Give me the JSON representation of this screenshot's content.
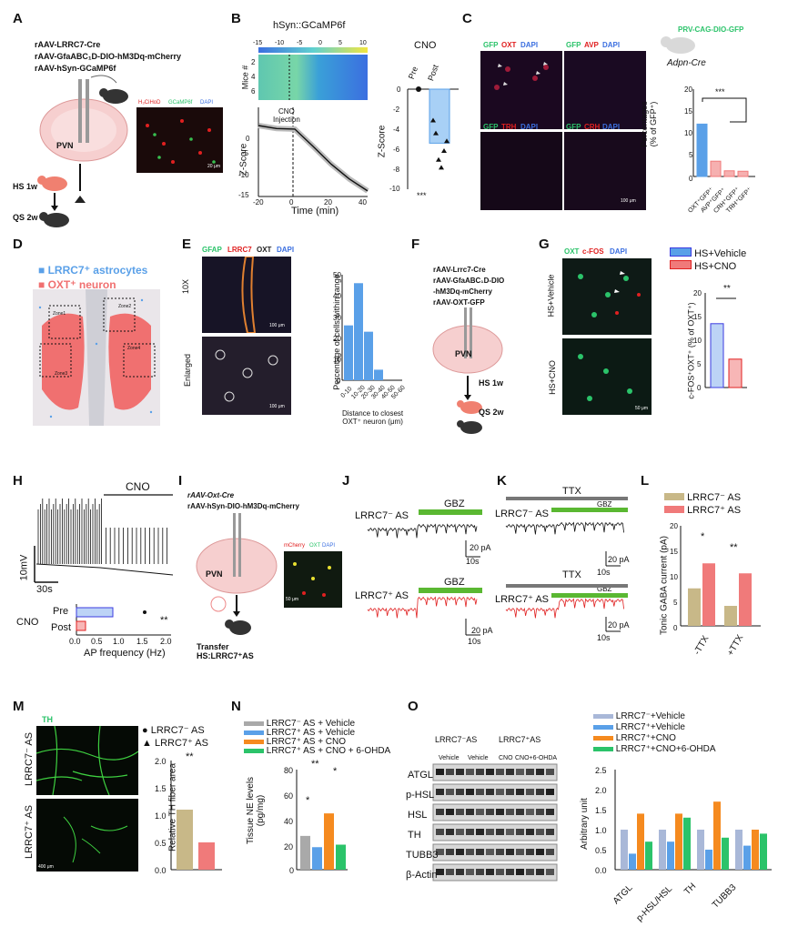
{
  "panels": {
    "A": {
      "letter": "A",
      "viruses": [
        "rAAV-LRRC7-Cre",
        "rAAV-GfaABC₁D-DIO-hM3Dq-mCherry",
        "rAAV-hSyn-GCaMP6f"
      ],
      "region": "PVN",
      "steps": [
        "HS 1w",
        "QS 2w"
      ],
      "micro_legend": {
        "c1": "H₃CiHoD",
        "c2": "GCaMP6f",
        "c3": "DAPI"
      },
      "scale": "20 μm"
    },
    "B": {
      "letter": "B",
      "title": "hSyn::GCaMP6f",
      "heat_ticks": [
        "-15",
        "-10",
        "-5",
        "0",
        "5",
        "10"
      ],
      "mice_label": "Mice #",
      "mice_ticks": [
        "2",
        "4",
        "6"
      ],
      "zscore_label": "Z-Score",
      "zscore_ticks": [
        "0",
        "-5",
        "-10",
        "-15"
      ],
      "time_label": "Time (min)",
      "time_ticks": [
        "-20",
        "0",
        "20",
        "40"
      ],
      "injection": "CNO\nInjection",
      "cno_title": "CNO",
      "pre": "Pre",
      "post": "Post",
      "bar_ylabel": "Z-Score",
      "bar_ticks": [
        "0",
        "-2",
        "-4",
        "-6",
        "-8",
        "-10"
      ],
      "sig": "***"
    },
    "C": {
      "letter": "C",
      "virus": "PRV-CAG-DIO-GFP",
      "mouse_line": "Adpn-Cre",
      "tiles": [
        {
          "a": "GFP",
          "b": "OXT",
          "c": "DAPI"
        },
        {
          "a": "GFP",
          "b": "AVP",
          "c": "DAPI"
        },
        {
          "a": "GFP",
          "b": "TRH",
          "c": "DAPI"
        },
        {
          "a": "GFP",
          "b": "CRH",
          "c": "DAPI"
        }
      ],
      "scale": "100 μm",
      "ylabel": "Percentages\n(% of GFP⁺)",
      "yticks": [
        "0",
        "5",
        "10",
        "15",
        "20"
      ],
      "categories": [
        "OXT⁺GFP⁺",
        "AVP⁺GFP⁺",
        "CRH⁺GFP⁺",
        "TRH⁺GFP⁺"
      ],
      "sig": "***"
    },
    "D": {
      "letter": "D",
      "legend1": "LRRC7⁺ astrocytes",
      "legend2": "OXT⁺ neuron",
      "zones": [
        "Zone1",
        "Zone2",
        "Zone3",
        "Zone4"
      ]
    },
    "E": {
      "letter": "E",
      "stain": {
        "a": "GFAP",
        "b": "LRRC7",
        "c": "OXT",
        "d": "DAPI"
      },
      "row1": "10X",
      "row2": "Enlarged",
      "scale": "100 μm",
      "ylabel": "Percentage of cells within range",
      "xlabel": "Distance to closest\nOXT⁺ neuron (μm)",
      "yticks": [
        "0",
        "10",
        "20",
        "30",
        "40",
        "50"
      ],
      "categories": [
        "0-10",
        "10-20",
        "20-30",
        "30-40",
        "40-50",
        "50-60"
      ]
    },
    "F": {
      "letter": "F",
      "viruses": [
        "rAAV-Lrrc7-Cre",
        "rAAV-GfaABC₁D-DIO",
        "-hM3Dq-mCherry",
        "rAAV-OXT-GFP"
      ],
      "region": "PVN",
      "steps": [
        "HS 1w",
        "QS 2w"
      ]
    },
    "G": {
      "letter": "G",
      "stain": {
        "a": "OXT",
        "b": "c-FOS",
        "c": "DAPI"
      },
      "row1": "HS+Vehicle",
      "row2": "HS+CNO",
      "legend": [
        "HS+Vehicle",
        "HS+CNO"
      ],
      "ylabel": "c-FOS⁺OXT⁺ (% of OXT⁺)",
      "yticks": [
        "0",
        "5",
        "10",
        "15",
        "20"
      ],
      "sig": "**",
      "scale": "50 μm"
    },
    "H": {
      "letter": "H",
      "cno": "CNO",
      "scale_v": "10mV",
      "scale_t": "30s",
      "group": "CNO",
      "pre": "Pre",
      "post": "Post",
      "xlabel": "AP frequency (Hz)",
      "xticks": [
        "0.0",
        "0.5",
        "1.0",
        "1.5",
        "2.0"
      ],
      "sig": "**"
    },
    "I": {
      "letter": "I",
      "viruses": [
        "rAAV-Oxt-Cre",
        "rAAV-hSyn-DIO-hM3Dq-mCherry"
      ],
      "region": "PVN",
      "transfer": "Transfer\nHS:LRRC7⁺AS",
      "micro": {
        "a": "mCherry",
        "b": "OXT",
        "c": "DAPI"
      },
      "scale": "50 μm"
    },
    "J": {
      "letter": "J",
      "row1": "LRRC7⁻ AS",
      "row2": "LRRC7⁺ AS",
      "drug": "GBZ",
      "scale_i": "20 pA",
      "scale_t": "10s"
    },
    "K": {
      "letter": "K",
      "row1": "LRRC7⁻ AS",
      "row2": "LRRC7⁺ AS",
      "drug": "GBZ",
      "ttx": "TTX",
      "scale_i": "20 pA",
      "scale_t": "10s"
    },
    "L": {
      "letter": "L",
      "legend": [
        "LRRC7⁻ AS",
        "LRRC7⁺ AS"
      ],
      "ylabel": "Tonic GABA current (pA)",
      "yticks": [
        "0",
        "5",
        "10",
        "15",
        "20"
      ],
      "categories": [
        "-TTX",
        "+TTX"
      ],
      "sig": [
        "*",
        "**"
      ]
    },
    "M": {
      "letter": "M",
      "stain": "TH",
      "row1": "LRRC7⁻ AS",
      "row2": "LRRC7⁺ AS",
      "legend": [
        "LRRC7⁻ AS",
        "LRRC7⁺ AS"
      ],
      "ylabel": "Relative TH fiber area",
      "yticks": [
        "0.0",
        "0.5",
        "1.0",
        "1.5",
        "2.0"
      ],
      "sig": "**",
      "scale": "400 μm"
    },
    "N": {
      "letter": "N",
      "legend": [
        "LRRC7⁻ AS + Vehicle",
        "LRRC7⁺ AS + Vehicle",
        "LRRC7⁺ AS + CNO",
        "LRRC7⁺ AS + CNO + 6-OHDA"
      ],
      "ylabel": "Tissue NE levels\n(pg/mg)",
      "yticks": [
        "0",
        "20",
        "40",
        "60",
        "80"
      ],
      "sig": [
        "*",
        "**",
        "*"
      ]
    },
    "O": {
      "letter": "O",
      "blot_header1": "LRRC7⁻AS",
      "blot_header2": "LRRC7⁺AS",
      "lanes": [
        "Vehicle",
        "Vehicle",
        "CNO",
        "CNO+6-OHDA"
      ],
      "bands": [
        "ATGL",
        "p-HSL",
        "HSL",
        "TH",
        "TUBB3",
        "β-Actin"
      ],
      "legend": [
        "LRRC7⁻+Vehicle",
        "LRRC7⁺+Vehicle",
        "LRRC7⁺+CNO",
        "LRRC7⁺+CNO+6-OHDA"
      ],
      "ylabel": "Arbitrary unit",
      "yticks": [
        "0.0",
        "0.5",
        "1.0",
        "1.5",
        "2.0",
        "2.5"
      ],
      "categories": [
        "ATGL",
        "p-HSL/HSL",
        "TH",
        "TUBB3"
      ]
    }
  },
  "colors": {
    "grey": "#a9a9a9",
    "blue": "#5aa0e8",
    "orange": "#f58a1f",
    "green": "#2bc36a",
    "tan": "#c8b888",
    "pink": "#f07a7a",
    "red": "#e02020",
    "heat_blue": "#3b6fe0",
    "heat_yellow": "#f2e640"
  },
  "chart_data": [
    {
      "type": "bar",
      "panel": "B",
      "categories": [
        "Pre",
        "Post"
      ],
      "values": [
        0,
        -5.5
      ],
      "ylim": [
        -10,
        0
      ],
      "points": {
        "Post": [
          -3.2,
          -4.5,
          -7.2,
          -8.0,
          -6.3,
          -5.3
        ]
      }
    },
    {
      "type": "line",
      "panel": "B",
      "x": [
        -20,
        -10,
        0,
        10,
        20,
        30,
        40
      ],
      "y": [
        0,
        -0.5,
        -0.6,
        -3.5,
        -6.5,
        -9,
        -11
      ],
      "ylim": [
        -15,
        0
      ],
      "xlim": [
        -20,
        40
      ]
    },
    {
      "type": "bar",
      "panel": "C",
      "categories": [
        "OXT⁺GFP⁺",
        "AVP⁺GFP⁺",
        "CRH⁺GFP⁺",
        "TRH⁺GFP⁺"
      ],
      "values": [
        12.0,
        3.5,
        1.3,
        1.2
      ],
      "ylim": [
        0,
        20
      ]
    },
    {
      "type": "bar",
      "panel": "E",
      "categories": [
        "0-10",
        "10-20",
        "20-30",
        "30-40",
        "40-50",
        "50-60"
      ],
      "values": [
        26,
        46,
        23,
        5,
        0,
        0
      ],
      "ylim": [
        0,
        50
      ]
    },
    {
      "type": "bar",
      "panel": "G",
      "categories": [
        "HS+Vehicle",
        "HS+CNO"
      ],
      "values": [
        13.5,
        6.0
      ],
      "ylim": [
        0,
        20
      ]
    },
    {
      "type": "bar",
      "panel": "H",
      "categories": [
        "Pre",
        "Post"
      ],
      "values": [
        0.8,
        0.2
      ],
      "xlim": [
        0,
        2.0
      ]
    },
    {
      "type": "bar",
      "panel": "L",
      "categories": [
        "-TTX",
        "+TTX"
      ],
      "series": [
        {
          "name": "LRRC7⁻ AS",
          "values": [
            7.5,
            4.0
          ]
        },
        {
          "name": "LRRC7⁺ AS",
          "values": [
            12.5,
            10.5
          ]
        }
      ],
      "ylim": [
        0,
        20
      ]
    },
    {
      "type": "bar",
      "panel": "M",
      "categories": [
        "LRRC7⁻ AS",
        "LRRC7⁺ AS"
      ],
      "values": [
        1.1,
        0.5
      ],
      "ylim": [
        0,
        2.0
      ]
    },
    {
      "type": "bar",
      "panel": "N",
      "categories": [
        "LRRC7⁻ AS + Vehicle",
        "LRRC7⁺ AS + Vehicle",
        "LRRC7⁺ AS + CNO",
        "LRRC7⁺ AS + CNO + 6-OHDA"
      ],
      "values": [
        27,
        18,
        45,
        20
      ],
      "ylim": [
        0,
        80
      ]
    },
    {
      "type": "bar",
      "panel": "O",
      "categories": [
        "ATGL",
        "p-HSL/HSL",
        "TH",
        "TUBB3"
      ],
      "series": [
        {
          "name": "LRRC7⁻+Vehicle",
          "values": [
            1.0,
            1.0,
            1.0,
            1.0
          ]
        },
        {
          "name": "LRRC7⁺+Vehicle",
          "values": [
            0.4,
            0.7,
            0.5,
            0.6
          ]
        },
        {
          "name": "LRRC7⁺+CNO",
          "values": [
            1.4,
            1.4,
            1.7,
            1.0
          ]
        },
        {
          "name": "LRRC7⁺+CNO+6-OHDA",
          "values": [
            0.7,
            1.3,
            0.8,
            0.9
          ]
        }
      ],
      "ylim": [
        0,
        2.5
      ]
    }
  ]
}
